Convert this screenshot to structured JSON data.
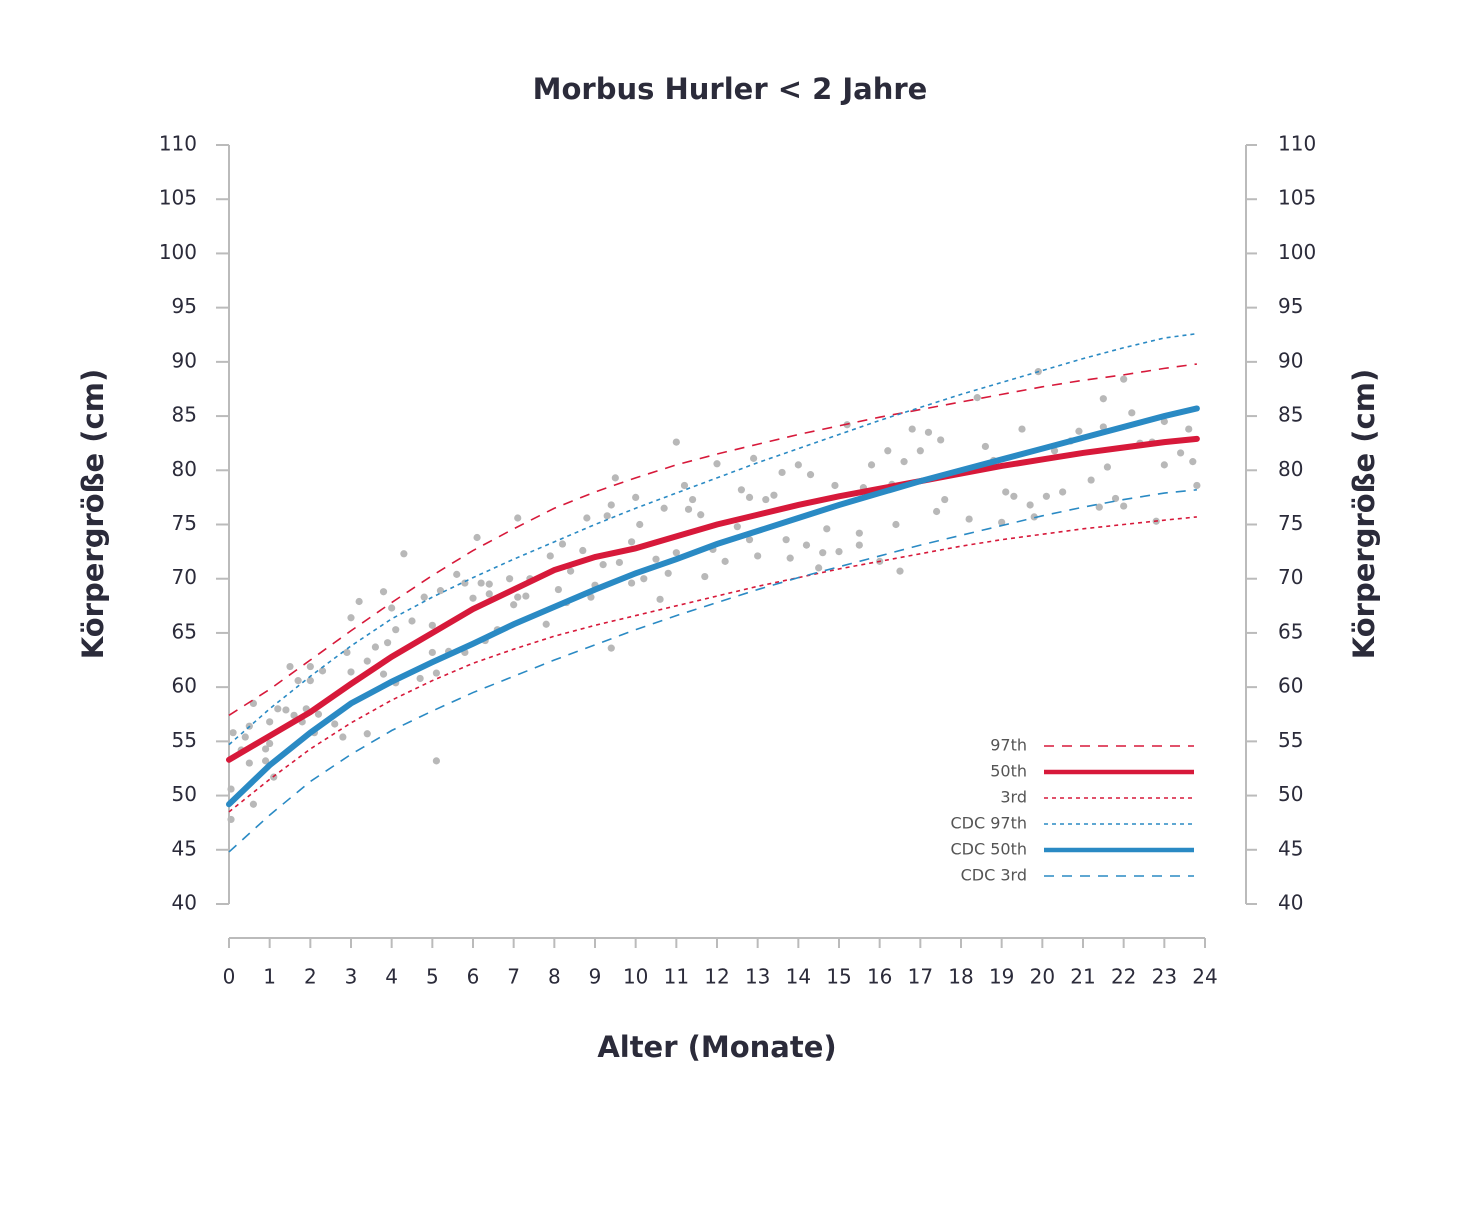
{
  "chart_data": {
    "type": "line",
    "title": "Morbus Hurler < 2 Jahre",
    "x_label": "Alter (Monate)",
    "y_label": "Körpergröße (cm)",
    "y2_label": "Körpergröße (cm)",
    "xlim": [
      0,
      24
    ],
    "xticks": [
      0,
      1,
      2,
      3,
      4,
      5,
      6,
      7,
      8,
      9,
      10,
      11,
      12,
      13,
      14,
      15,
      16,
      17,
      18,
      19,
      20,
      21,
      22,
      23,
      24
    ],
    "ylim": [
      40,
      110
    ],
    "yticks": [
      40,
      45,
      50,
      55,
      60,
      65,
      70,
      75,
      80,
      85,
      90,
      95,
      100,
      105,
      110
    ],
    "y2lim": [
      40,
      110
    ],
    "y2ticks": [
      40,
      45,
      50,
      55,
      60,
      65,
      70,
      75,
      80,
      85,
      90,
      95,
      100,
      105,
      110
    ],
    "legend": "lower right",
    "x": [
      0,
      1,
      2,
      3,
      4,
      5,
      6,
      7,
      8,
      9,
      10,
      11,
      12,
      13,
      14,
      15,
      16,
      17,
      18,
      19,
      20,
      21,
      22,
      23,
      23.8
    ],
    "series": [
      {
        "type": "scatter",
        "color": "#b8b8b8",
        "x": [
          0.05,
          0.05,
          0.1,
          0.3,
          0.4,
          0.5,
          0.5,
          0.6,
          0.6,
          0.9,
          0.9,
          1.0,
          1.0,
          1.1,
          1.2,
          1.4,
          1.5,
          1.6,
          1.7,
          1.8,
          1.9,
          2.0,
          2.0,
          2.1,
          2.2,
          2.3,
          2.6,
          2.8,
          2.9,
          3.0,
          3.0,
          3.2,
          3.4,
          3.4,
          3.6,
          3.8,
          3.8,
          3.9,
          4.0,
          4.1,
          4.1,
          4.3,
          4.5,
          4.7,
          4.8,
          5.0,
          5.0,
          5.1,
          5.1,
          5.2,
          5.4,
          5.6,
          5.8,
          5.8,
          6.0,
          6.1,
          6.2,
          6.3,
          6.4,
          6.4,
          6.6,
          6.9,
          7.0,
          7.1,
          7.1,
          7.3,
          7.4,
          7.8,
          7.9,
          8.1,
          8.2,
          8.3,
          8.4,
          8.7,
          8.8,
          8.9,
          9.0,
          9.2,
          9.3,
          9.4,
          9.4,
          9.5,
          9.6,
          9.9,
          9.9,
          10.0,
          10.1,
          10.2,
          10.5,
          10.6,
          10.7,
          10.8,
          11.0,
          11.0,
          11.2,
          11.3,
          11.4,
          11.6,
          11.7,
          11.9,
          12.0,
          12.2,
          12.5,
          12.6,
          12.8,
          12.8,
          12.9,
          13.0,
          13.2,
          13.4,
          13.6,
          13.7,
          13.8,
          14.0,
          14.2,
          14.3,
          14.5,
          14.6,
          14.7,
          14.9,
          15.0,
          15.2,
          15.5,
          15.5,
          15.6,
          15.8,
          16.0,
          16.2,
          16.3,
          16.4,
          16.5,
          16.6,
          16.8,
          17.0,
          17.2,
          17.4,
          17.5,
          17.6,
          18.2,
          18.4,
          18.6,
          18.8,
          19.0,
          19.1,
          19.3,
          19.5,
          19.7,
          19.8,
          19.9,
          20.1,
          20.3,
          20.5,
          20.7,
          20.9,
          21.2,
          21.4,
          21.5,
          21.5,
          21.6,
          21.8,
          22.0,
          22.0,
          22.2,
          22.4,
          22.7,
          22.8,
          23.0,
          23.0,
          23.4,
          23.6,
          23.7,
          23.8
        ],
        "values": [
          47.8,
          50.6,
          55.8,
          54.2,
          55.4,
          53.0,
          56.4,
          49.2,
          58.5,
          53.2,
          54.3,
          54.8,
          56.8,
          51.7,
          58.0,
          57.9,
          61.9,
          57.4,
          60.6,
          56.8,
          58.0,
          61.9,
          60.6,
          55.8,
          57.5,
          61.5,
          56.6,
          55.4,
          63.2,
          61.4,
          66.4,
          67.9,
          62.4,
          55.7,
          63.7,
          61.2,
          68.8,
          64.1,
          67.3,
          60.4,
          65.3,
          72.3,
          66.1,
          60.8,
          68.3,
          65.7,
          63.2,
          53.2,
          61.3,
          68.9,
          63.3,
          70.4,
          69.6,
          63.2,
          68.2,
          73.8,
          69.6,
          64.3,
          68.6,
          69.5,
          65.3,
          70.0,
          67.6,
          68.3,
          75.6,
          68.4,
          70.0,
          65.8,
          72.1,
          69.0,
          73.2,
          67.8,
          70.7,
          72.6,
          75.6,
          68.3,
          69.4,
          71.3,
          75.8,
          76.8,
          63.6,
          79.3,
          71.5,
          73.4,
          69.6,
          77.5,
          75.0,
          70.0,
          71.8,
          68.1,
          76.5,
          70.5,
          72.4,
          82.6,
          78.6,
          76.4,
          77.3,
          75.9,
          70.2,
          72.7,
          80.6,
          71.6,
          74.8,
          78.2,
          77.5,
          73.6,
          81.1,
          72.1,
          77.3,
          77.7,
          79.8,
          73.6,
          71.9,
          80.5,
          73.1,
          79.6,
          71.0,
          72.4,
          74.6,
          78.6,
          72.5,
          84.2,
          74.2,
          73.1,
          78.4,
          80.5,
          71.6,
          81.8,
          78.7,
          75.0,
          70.7,
          80.8,
          83.8,
          81.8,
          83.5,
          76.2,
          82.8,
          77.3,
          75.5,
          86.7,
          82.2,
          80.9,
          75.2,
          78.0,
          77.6,
          83.8,
          76.8,
          75.7,
          89.1,
          77.6,
          81.8,
          78.0,
          82.7,
          83.6,
          79.1,
          76.6,
          86.6,
          84.0,
          80.3,
          77.4,
          88.4,
          76.7,
          85.3,
          82.5,
          82.6,
          75.3,
          84.5,
          80.5,
          81.6,
          83.8,
          80.8,
          78.6
        ]
      },
      {
        "name": "97th",
        "color": "#d7193a",
        "dash": "dashed",
        "width": 1.6,
        "values": [
          57.4,
          59.8,
          62.5,
          65.2,
          67.8,
          70.3,
          72.6,
          74.6,
          76.5,
          78.0,
          79.3,
          80.5,
          81.5,
          82.4,
          83.3,
          84.1,
          84.9,
          85.6,
          86.3,
          87.0,
          87.7,
          88.3,
          88.8,
          89.4,
          89.8
        ]
      },
      {
        "name": "50th",
        "color": "#d7193a",
        "dash": "solid",
        "width": 6,
        "values": [
          53.3,
          55.5,
          57.7,
          60.3,
          62.8,
          65.0,
          67.2,
          69.0,
          70.8,
          72.0,
          72.8,
          73.9,
          75.0,
          75.9,
          76.8,
          77.6,
          78.3,
          79.0,
          79.7,
          80.4,
          81.0,
          81.6,
          82.1,
          82.6,
          82.9
        ]
      },
      {
        "name": "3rd",
        "color": "#d7193a",
        "dash": "dotted",
        "width": 1.6,
        "values": [
          48.5,
          51.5,
          54.3,
          56.7,
          58.8,
          60.6,
          62.2,
          63.5,
          64.7,
          65.7,
          66.6,
          67.5,
          68.4,
          69.3,
          70.1,
          70.9,
          71.6,
          72.3,
          73.0,
          73.6,
          74.1,
          74.6,
          75.0,
          75.4,
          75.7
        ]
      },
      {
        "name": "CDC 97th",
        "color": "#2a8ac4",
        "dash": "dotted",
        "width": 1.6,
        "values": [
          54.7,
          58.0,
          61.0,
          63.8,
          66.3,
          68.3,
          70.1,
          71.8,
          73.4,
          75.0,
          76.5,
          77.9,
          79.3,
          80.7,
          82.0,
          83.3,
          84.6,
          85.8,
          87.0,
          88.1,
          89.2,
          90.3,
          91.3,
          92.2,
          92.6
        ]
      },
      {
        "name": "CDC 50th",
        "color": "#2a8ac4",
        "dash": "solid",
        "width": 6,
        "values": [
          49.2,
          52.8,
          55.8,
          58.5,
          60.5,
          62.3,
          64.0,
          65.8,
          67.4,
          69.0,
          70.5,
          71.8,
          73.2,
          74.4,
          75.6,
          76.8,
          77.9,
          79.0,
          80.0,
          81.0,
          82.0,
          83.0,
          84.0,
          85.0,
          85.7
        ]
      },
      {
        "name": "CDC 3rd",
        "color": "#2a8ac4",
        "dash": "dashed",
        "width": 1.6,
        "values": [
          44.8,
          48.2,
          51.3,
          53.8,
          56.0,
          57.8,
          59.5,
          61.0,
          62.5,
          63.9,
          65.3,
          66.6,
          67.8,
          69.0,
          70.1,
          71.1,
          72.1,
          73.1,
          74.0,
          74.9,
          75.8,
          76.6,
          77.3,
          77.9,
          78.2
        ]
      }
    ]
  }
}
